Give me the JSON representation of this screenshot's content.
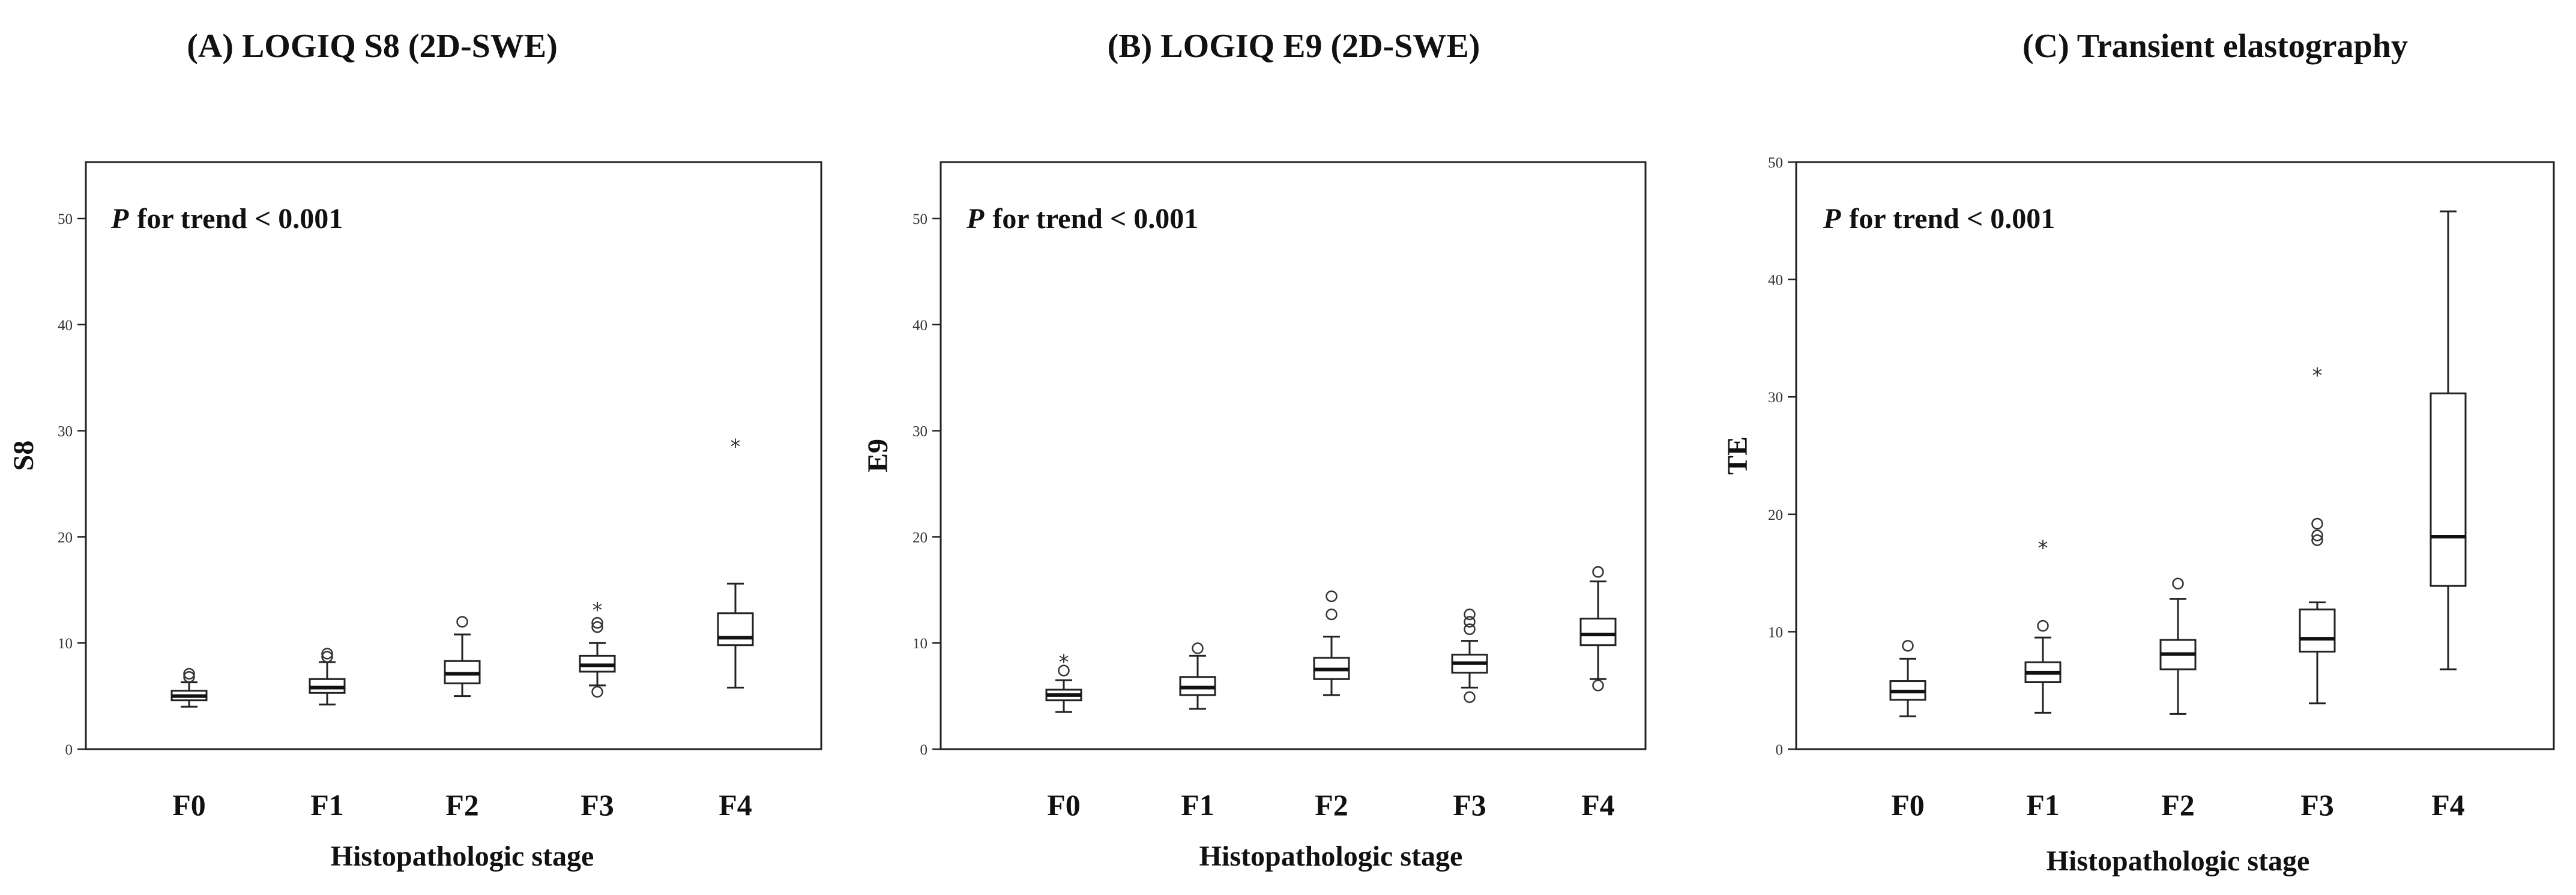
{
  "chart_data": [
    {
      "type": "box",
      "title": "(A) LOGIQ S8 (2D-SWE)",
      "ylabel": "S8",
      "xlabel": "Histopathologic stage",
      "annotation": {
        "p_symbol": "P",
        "text": "for trend < 0.001"
      },
      "ylim": [
        0,
        50
      ],
      "yticks": [
        "0",
        "10",
        "20",
        "30",
        "40",
        "50"
      ],
      "categories": [
        "F0",
        "F1",
        "F2",
        "F3",
        "F4"
      ],
      "boxes": [
        {
          "whisker_low": 4.0,
          "q1": 4.6,
          "median": 5.0,
          "q3": 5.5,
          "whisker_high": 6.3,
          "outliers": [
            6.8,
            7.1
          ],
          "extremes": []
        },
        {
          "whisker_low": 4.2,
          "q1": 5.3,
          "median": 5.8,
          "q3": 6.6,
          "whisker_high": 8.2,
          "outliers": [
            8.7,
            9.0
          ],
          "extremes": []
        },
        {
          "whisker_low": 5.0,
          "q1": 6.2,
          "median": 7.1,
          "q3": 8.3,
          "whisker_high": 10.8,
          "outliers": [
            12.0
          ],
          "extremes": []
        },
        {
          "whisker_low": 6.0,
          "q1": 7.3,
          "median": 7.9,
          "q3": 8.8,
          "whisker_high": 10.0,
          "outliers": [
            5.4,
            11.5,
            11.9
          ],
          "extremes": [
            13.3
          ]
        },
        {
          "whisker_low": 5.8,
          "q1": 9.8,
          "median": 10.5,
          "q3": 12.8,
          "whisker_high": 15.6,
          "outliers": [],
          "extremes": [
            28.7
          ]
        }
      ]
    },
    {
      "type": "box",
      "title": "(B) LOGIQ E9 (2D-SWE)",
      "ylabel": "E9",
      "xlabel": "Histopathologic stage",
      "annotation": {
        "p_symbol": "P",
        "text": "for trend < 0.001"
      },
      "ylim": [
        0,
        50
      ],
      "yticks": [
        "0",
        "10",
        "20",
        "30",
        "40",
        "50"
      ],
      "categories": [
        "F0",
        "F1",
        "F2",
        "F3",
        "F4"
      ],
      "boxes": [
        {
          "whisker_low": 3.5,
          "q1": 4.6,
          "median": 5.1,
          "q3": 5.6,
          "whisker_high": 6.5,
          "outliers": [
            7.4
          ],
          "extremes": [
            8.4
          ]
        },
        {
          "whisker_low": 3.8,
          "q1": 5.1,
          "median": 5.8,
          "q3": 6.8,
          "whisker_high": 8.8,
          "outliers": [
            9.5
          ],
          "extremes": []
        },
        {
          "whisker_low": 5.1,
          "q1": 6.6,
          "median": 7.5,
          "q3": 8.6,
          "whisker_high": 10.6,
          "outliers": [
            12.7,
            14.4
          ],
          "extremes": []
        },
        {
          "whisker_low": 5.8,
          "q1": 7.2,
          "median": 8.1,
          "q3": 8.9,
          "whisker_high": 10.2,
          "outliers": [
            4.9,
            11.3,
            12.0,
            12.7
          ],
          "extremes": []
        },
        {
          "whisker_low": 6.6,
          "q1": 9.8,
          "median": 10.8,
          "q3": 12.3,
          "whisker_high": 15.8,
          "outliers": [
            6.0,
            16.7
          ],
          "extremes": []
        }
      ]
    },
    {
      "type": "box",
      "title": "(C) Transient elastography",
      "ylabel": "TE",
      "xlabel": "Histopathologic stage",
      "annotation": {
        "p_symbol": "P",
        "text": "for trend < 0.001"
      },
      "ylim": [
        0,
        50
      ],
      "yticks": [
        "0",
        "10",
        "20",
        "30",
        "40",
        "50"
      ],
      "categories": [
        "F0",
        "F1",
        "F2",
        "F3",
        "F4"
      ],
      "boxes": [
        {
          "whisker_low": 2.8,
          "q1": 4.2,
          "median": 4.9,
          "q3": 5.8,
          "whisker_high": 7.7,
          "outliers": [
            8.8
          ],
          "extremes": []
        },
        {
          "whisker_low": 3.1,
          "q1": 5.7,
          "median": 6.5,
          "q3": 7.4,
          "whisker_high": 9.5,
          "outliers": [
            10.5
          ],
          "extremes": [
            17.3
          ]
        },
        {
          "whisker_low": 3.0,
          "q1": 6.8,
          "median": 8.1,
          "q3": 9.3,
          "whisker_high": 12.8,
          "outliers": [
            14.1
          ],
          "extremes": []
        },
        {
          "whisker_low": 3.9,
          "q1": 8.3,
          "median": 9.4,
          "q3": 11.9,
          "whisker_high": 12.5,
          "outliers": [
            17.8,
            18.2,
            19.2
          ],
          "extremes": [
            32.0
          ]
        },
        {
          "whisker_low": 6.8,
          "q1": 13.9,
          "median": 18.1,
          "q3": 30.3,
          "whisker_high": 45.8,
          "outliers": [],
          "extremes": []
        }
      ]
    }
  ]
}
